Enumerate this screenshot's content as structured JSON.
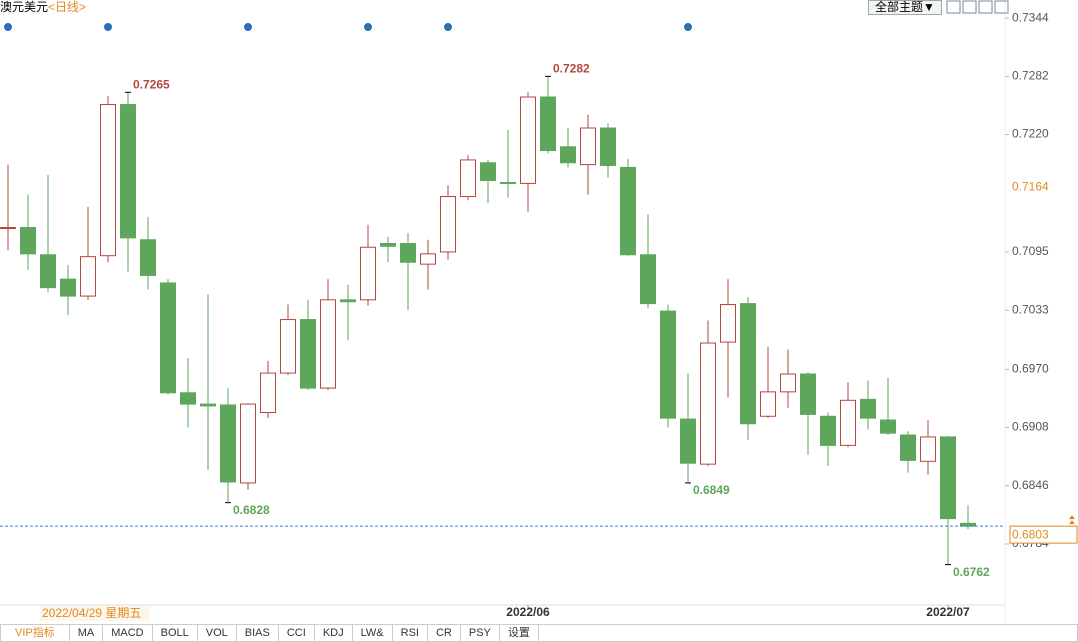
{
  "header": {
    "title": "澳元美元",
    "period": "<日线>",
    "theme_button": "全部主题▼"
  },
  "chart_data": {
    "type": "candlestick",
    "categories": [
      null,
      null,
      null,
      null,
      null,
      null,
      null,
      null,
      null,
      null,
      null,
      null,
      null,
      null,
      null,
      null,
      null,
      null,
      null,
      null,
      null,
      null,
      null,
      null,
      null,
      null,
      "2022/06",
      null,
      null,
      null,
      null,
      null,
      null,
      null,
      null,
      null,
      null,
      null,
      null,
      null,
      null,
      null,
      null,
      null,
      null,
      null,
      null,
      "2022/07",
      null
    ],
    "open": [
      0.712,
      0.7121,
      0.7092,
      0.7066,
      0.7048,
      0.7091,
      0.7252,
      0.7108,
      0.7062,
      0.6945,
      0.6933,
      0.6932,
      0.6849,
      0.6924,
      0.6966,
      0.7023,
      0.695,
      0.7044,
      0.7044,
      0.7104,
      0.7104,
      0.7082,
      0.7095,
      0.7154,
      0.719,
      0.7169,
      0.7168,
      0.726,
      0.7207,
      0.7188,
      0.7227,
      0.7185,
      0.7092,
      0.7032,
      0.6917,
      0.6869,
      0.6999,
      0.704,
      0.692,
      0.6946,
      0.6965,
      0.692,
      0.6889,
      0.6938,
      0.6916,
      0.69,
      0.6872,
      0.6898,
      0.6806
    ],
    "high": [
      0.7188,
      0.7156,
      0.7177,
      0.7081,
      0.7143,
      0.7261,
      0.7265,
      0.7132,
      0.7066,
      0.6982,
      0.705,
      0.695,
      0.6934,
      0.6979,
      0.7039,
      0.7044,
      0.7066,
      0.706,
      0.7124,
      0.7111,
      0.7115,
      0.7108,
      0.7166,
      0.7198,
      0.7193,
      0.7225,
      0.7265,
      0.7282,
      0.7227,
      0.7241,
      0.7232,
      0.7194,
      0.7135,
      0.7039,
      0.6966,
      0.7022,
      0.7066,
      0.7047,
      0.6994,
      0.6991,
      0.6967,
      0.6924,
      0.6956,
      0.6958,
      0.6961,
      0.6904,
      0.6916,
      0.6899,
      0.6825
    ],
    "low": [
      0.7097,
      0.7076,
      0.7052,
      0.7028,
      0.7044,
      0.7084,
      0.7074,
      0.7055,
      0.6943,
      0.6908,
      0.6863,
      0.6828,
      0.6842,
      0.6918,
      0.6964,
      0.6948,
      0.6948,
      0.7001,
      0.7038,
      0.7084,
      0.7033,
      0.7055,
      0.7087,
      0.715,
      0.7147,
      0.7153,
      0.7138,
      0.72,
      0.7185,
      0.7156,
      0.7174,
      0.7091,
      0.7035,
      0.6908,
      0.6849,
      0.6867,
      0.694,
      0.6895,
      0.6918,
      0.6929,
      0.6879,
      0.6867,
      0.6887,
      0.6906,
      0.69,
      0.686,
      0.6858,
      0.6762,
      0.68
    ],
    "close": [
      0.7121,
      0.7093,
      0.7057,
      0.7048,
      0.709,
      0.7252,
      0.711,
      0.707,
      0.6945,
      0.6933,
      0.6931,
      0.685,
      0.6933,
      0.6966,
      0.7023,
      0.695,
      0.7044,
      0.7042,
      0.71,
      0.7101,
      0.7084,
      0.7093,
      0.7154,
      0.7193,
      0.7171,
      0.7168,
      0.726,
      0.7203,
      0.719,
      0.7227,
      0.7187,
      0.7092,
      0.704,
      0.6918,
      0.687,
      0.6998,
      0.7039,
      0.6912,
      0.6946,
      0.6965,
      0.6922,
      0.6889,
      0.6937,
      0.6918,
      0.6902,
      0.6873,
      0.6898,
      0.6811,
      0.6803
    ],
    "up_color": "#b5463e",
    "down_color": "#5ea65b",
    "last_line_color": "#3a7bd5",
    "highlight_color": "#e08a1e",
    "ylim": [
      0.6719,
      0.7358
    ],
    "yticks": [
      {
        "value": 0.7344,
        "label": "0.7344"
      },
      {
        "value": 0.7282,
        "label": "0.7282"
      },
      {
        "value": 0.722,
        "label": "0.7220"
      },
      {
        "value": 0.7095,
        "label": "0.7095"
      },
      {
        "value": 0.7033,
        "label": "0.7033"
      },
      {
        "value": 0.697,
        "label": "0.6970"
      },
      {
        "value": 0.6908,
        "label": "0.6908"
      },
      {
        "value": 0.6846,
        "label": "0.6846"
      },
      {
        "value": 0.6784,
        "label": "0.6784"
      }
    ],
    "grid": false,
    "crosshair": {
      "x_label": "2022/04/29 星期五",
      "y_label": {
        "value": 0.7164,
        "label": "0.7164"
      }
    }
  },
  "tabs": [
    "VIP指标",
    "MA",
    "MACD",
    "BOLL",
    "VOL",
    "BIAS",
    "CCI",
    "KDJ",
    "LW&",
    "RSI",
    "CR",
    "PSY",
    "设置"
  ]
}
